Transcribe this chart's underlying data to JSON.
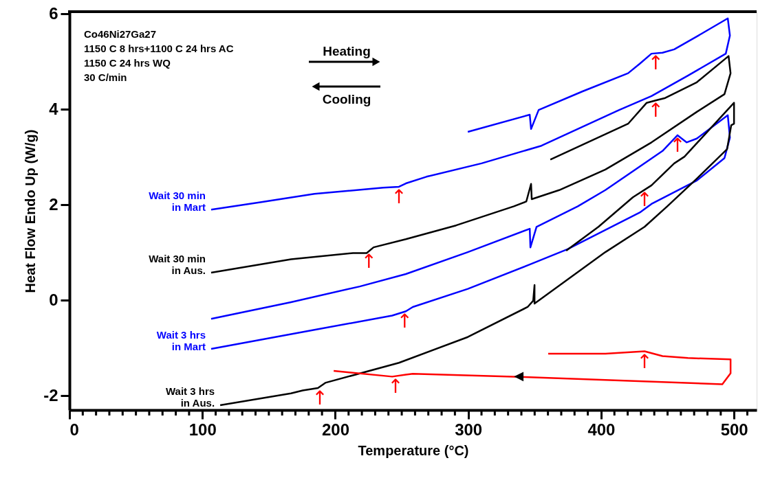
{
  "chart_data": {
    "type": "line",
    "xlabel": "Temperature (°C)",
    "ylabel": "Heat Flow  Endo Up (W/g)",
    "xlim": [
      0,
      517
    ],
    "ylim": [
      -2.3,
      6.05
    ],
    "xticks": [
      0,
      {
        "value": 10,
        "label": null
      },
      {
        "value": 20,
        "label": null
      },
      {
        "value": 30,
        "label": null
      },
      {
        "value": 40,
        "label": null
      },
      {
        "value": 50,
        "label": null
      },
      {
        "value": 60,
        "label": null
      },
      {
        "value": 70,
        "label": null
      },
      {
        "value": 80,
        "label": null
      },
      {
        "value": 90,
        "label": null
      },
      100,
      {
        "value": 110,
        "label": null
      },
      {
        "value": 120,
        "label": null
      },
      {
        "value": 130,
        "label": null
      },
      {
        "value": 140,
        "label": null
      },
      {
        "value": 150,
        "label": null
      },
      {
        "value": 160,
        "label": null
      },
      {
        "value": 170,
        "label": null
      },
      {
        "value": 180,
        "label": null
      },
      {
        "value": 190,
        "label": null
      },
      200,
      {
        "value": 210,
        "label": null
      },
      {
        "value": 220,
        "label": null
      },
      {
        "value": 230,
        "label": null
      },
      {
        "value": 240,
        "label": null
      },
      {
        "value": 250,
        "label": null
      },
      {
        "value": 260,
        "label": null
      },
      {
        "value": 270,
        "label": null
      },
      {
        "value": 280,
        "label": null
      },
      {
        "value": 290,
        "label": null
      },
      300,
      {
        "value": 310,
        "label": null
      },
      {
        "value": 320,
        "label": null
      },
      {
        "value": 330,
        "label": null
      },
      {
        "value": 340,
        "label": null
      },
      {
        "value": 350,
        "label": null
      },
      {
        "value": 360,
        "label": null
      },
      {
        "value": 370,
        "label": null
      },
      {
        "value": 380,
        "label": null
      },
      {
        "value": 390,
        "label": null
      },
      400,
      {
        "value": 410,
        "label": null
      },
      {
        "value": 420,
        "label": null
      },
      {
        "value": 430,
        "label": null
      },
      {
        "value": 440,
        "label": null
      },
      {
        "value": 450,
        "label": null
      },
      {
        "value": 460,
        "label": null
      },
      {
        "value": 470,
        "label": null
      },
      {
        "value": 480,
        "label": null
      },
      {
        "value": 490,
        "label": null
      },
      500,
      {
        "value": 510,
        "label": null
      }
    ],
    "yticks": [
      -2,
      0,
      2,
      4,
      6
    ],
    "series": [
      {
        "name": "Wait 30 min\nin Mart",
        "color": "#0000ff",
        "x": [
          299.7,
          346.3,
          347.3,
          353.0,
          386.1,
          420.3,
          429.1,
          437.9,
          446.2,
          455.0,
          472.0,
          495.3,
          496.9,
          493.8,
          465.3,
          437.9,
          413.6,
          387.7,
          355.1,
          310.0,
          268.6,
          253.1,
          247.9,
          236.0,
          184.3,
          144.4,
          106.6
        ],
        "values": [
          3.53,
          3.89,
          3.59,
          3.99,
          4.38,
          4.76,
          4.96,
          5.17,
          5.19,
          5.26,
          5.53,
          5.91,
          5.55,
          5.17,
          4.71,
          4.28,
          3.99,
          3.66,
          3.24,
          2.87,
          2.59,
          2.45,
          2.38,
          2.36,
          2.23,
          2.06,
          1.9
        ]
      },
      {
        "name": "Wait 30 min\nin Aus.",
        "color": "#000000",
        "x": [
          361.8,
          420.3,
          434.3,
          441.0,
          448.2,
          472.0,
          495.9,
          497.4,
          492.8,
          472.0,
          437.9,
          403.2,
          368.5,
          347.8,
          347.3,
          343.7,
          334.4,
          290.9,
          253.1,
          228.8,
          223.6,
          213.3,
          166.7,
          106.6
        ],
        "values": [
          2.95,
          3.7,
          4.14,
          4.19,
          4.24,
          4.57,
          5.12,
          4.76,
          4.32,
          3.95,
          3.31,
          2.74,
          2.31,
          2.12,
          2.44,
          2.07,
          1.97,
          1.57,
          1.28,
          1.11,
          0.99,
          0.99,
          0.86,
          0.58
        ]
      },
      {
        "name": "Wait 3 hrs\nin Mart",
        "color": "#0000ff",
        "x": [
          106.6,
          166.7,
          218.4,
          253.1,
          299.7,
          346.3,
          346.8,
          351.4,
          382.5,
          403.2,
          446.2,
          457.5,
          464.3,
          472.0,
          495.3,
          496.9,
          492.8,
          472.0,
          437.9,
          429.1,
          374.7,
          346.3,
          299.7,
          258.3,
          253.1,
          242.8,
          184.3,
          106.6
        ],
        "values": [
          -0.39,
          -0.04,
          0.29,
          0.55,
          1.01,
          1.5,
          1.11,
          1.54,
          1.97,
          2.31,
          3.13,
          3.46,
          3.31,
          3.39,
          3.88,
          3.41,
          2.98,
          2.51,
          2.02,
          1.84,
          1.07,
          0.75,
          0.24,
          -0.14,
          -0.23,
          -0.32,
          -0.62,
          -1.02
        ]
      },
      {
        "name": "Wait 3 hrs\nin Aus.",
        "color": "#000000",
        "x": [
          373.7,
          398.0,
          423.9,
          437.9,
          455.0,
          462.7,
          500.0,
          500.0,
          497.9,
          494.8,
          472.0,
          449.8,
          432.7,
          403.2,
          349.9,
          349.9,
          348.9,
          344.7,
          299.7,
          247.9,
          192.5,
          186.9,
          175.5,
          166.7,
          113.4
        ],
        "values": [
          1.04,
          1.54,
          2.16,
          2.41,
          2.87,
          3.01,
          4.14,
          3.7,
          3.67,
          3.17,
          2.55,
          1.97,
          1.54,
          1.01,
          -0.07,
          0.32,
          -0.01,
          -0.14,
          -0.77,
          -1.31,
          -1.73,
          -1.84,
          -1.89,
          -1.95,
          -2.2
        ]
      },
      {
        "color": "#ff0000",
        "x": [
          360.2,
          403.2,
          432.7,
          446.2,
          465.3,
          497.4,
          497.4,
          491.2,
          342.6,
          258.3,
          253.1,
          242.8,
          198.8
        ],
        "values": [
          -1.12,
          -1.12,
          -1.07,
          -1.17,
          -1.21,
          -1.24,
          -1.53,
          -1.76,
          -1.61,
          -1.54,
          -1.56,
          -1.6,
          -1.48
        ]
      }
    ],
    "annotations": [
      "Co46Ni27Ga27",
      "1150 C  8 hrs+1100 C 24 hrs AC",
      "1150 C  24 hrs WQ",
      "30 C/min",
      "Heating",
      "Cooling",
      {
        "text": "↑",
        "x": 441.0,
        "y": 5.18
      },
      {
        "text": "↑",
        "x": 441.0,
        "y": 4.19
      },
      {
        "text": "↑",
        "x": 247.9,
        "y": 2.38
      },
      {
        "text": "↑",
        "x": 225.2,
        "y": 1.03
      },
      {
        "text": "↑",
        "x": 457.5,
        "y": 3.46
      },
      {
        "text": "↑",
        "x": 432.7,
        "y": 2.32
      },
      {
        "text": "↑",
        "x": 252.1,
        "y": -0.22
      },
      {
        "text": "↑",
        "x": 188.4,
        "y": -1.84
      },
      {
        "text": "↑",
        "x": 245.3,
        "y": -1.59
      },
      {
        "text": "↑",
        "x": 432.7,
        "y": -1.07
      },
      {
        "text": "◀",
        "x": 338.0,
        "y": -1.59
      }
    ]
  }
}
